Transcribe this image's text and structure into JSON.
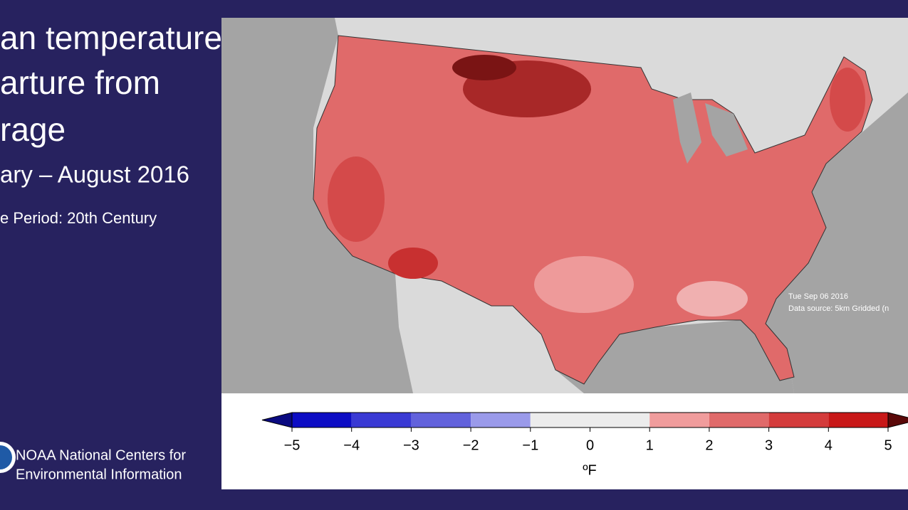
{
  "header": {
    "title_lines": [
      "an temperature",
      "arture from",
      "rage"
    ],
    "period": "ary – August 2016",
    "base_period": "e Period: 20th Century"
  },
  "map": {
    "stamp": {
      "date": "Tue Sep 06 2016",
      "source": "Data source: 5km Gridded (n"
    }
  },
  "legend": {
    "lim": [
      -5,
      5
    ],
    "ticks": [
      {
        "value": -5,
        "label": "−5"
      },
      {
        "value": -4,
        "label": "−4"
      },
      {
        "value": -3,
        "label": "−3"
      },
      {
        "value": -2,
        "label": "−2"
      },
      {
        "value": -1,
        "label": "−1"
      },
      0,
      1,
      2,
      3,
      4,
      5
    ],
    "colors": [
      "#0d0dc4",
      "#3a3ad4",
      "#6262dc",
      "#9a9aea",
      "#ececec",
      "#ececec",
      "#f09c9c",
      "#e06a6a",
      "#d43c3c",
      "#c81818"
    ],
    "under_color": "#0a0a80",
    "over_color": "#5a0808",
    "unit": "ºF"
  },
  "footer": {
    "org_lines": [
      "NOAA National Centers for",
      "Environmental Information"
    ]
  }
}
